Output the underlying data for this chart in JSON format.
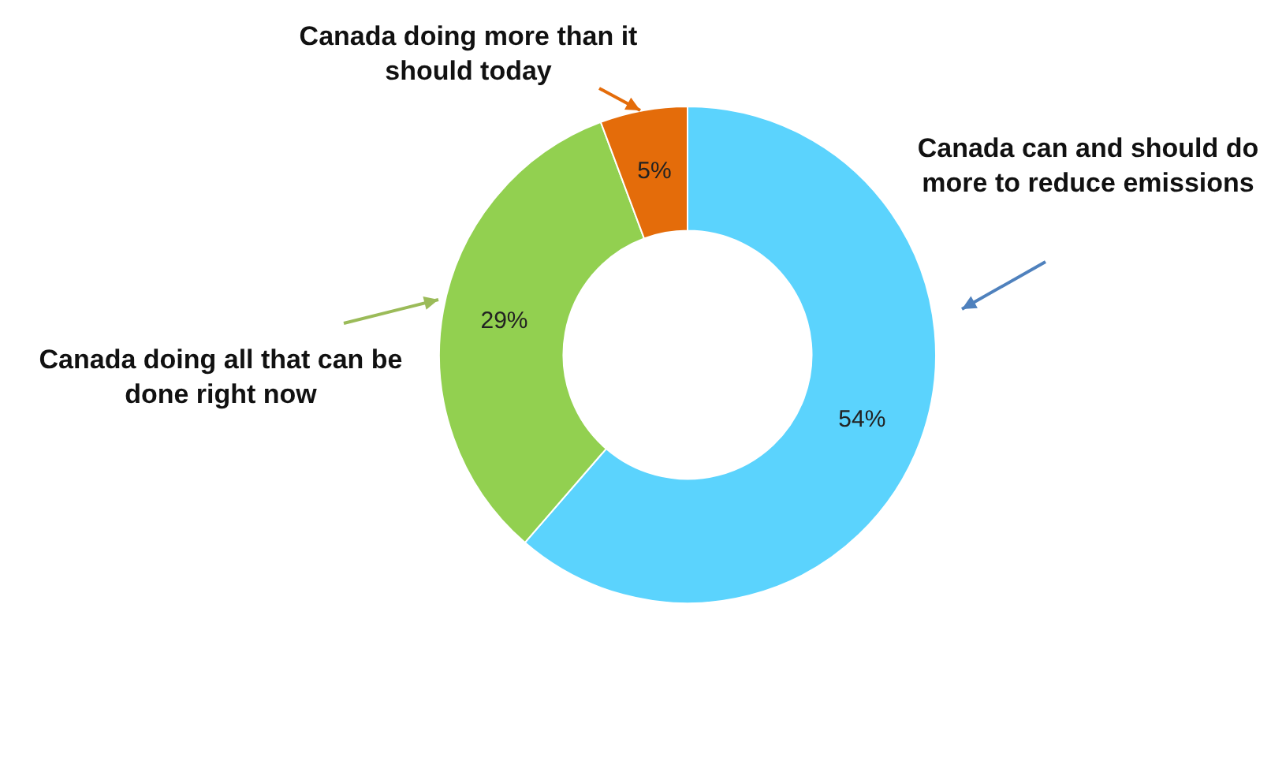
{
  "chart_data": {
    "type": "donut",
    "categories": [
      "Canada can and should do more to reduce emissions",
      "Canada doing all that can be done right now",
      "Canada doing more than it should today"
    ],
    "values": [
      54,
      29,
      5
    ],
    "colors": [
      "#5bd3fd",
      "#92d050",
      "#e46c0a"
    ],
    "value_labels": [
      "54%",
      "29%",
      "5%"
    ],
    "legend": false
  }
}
